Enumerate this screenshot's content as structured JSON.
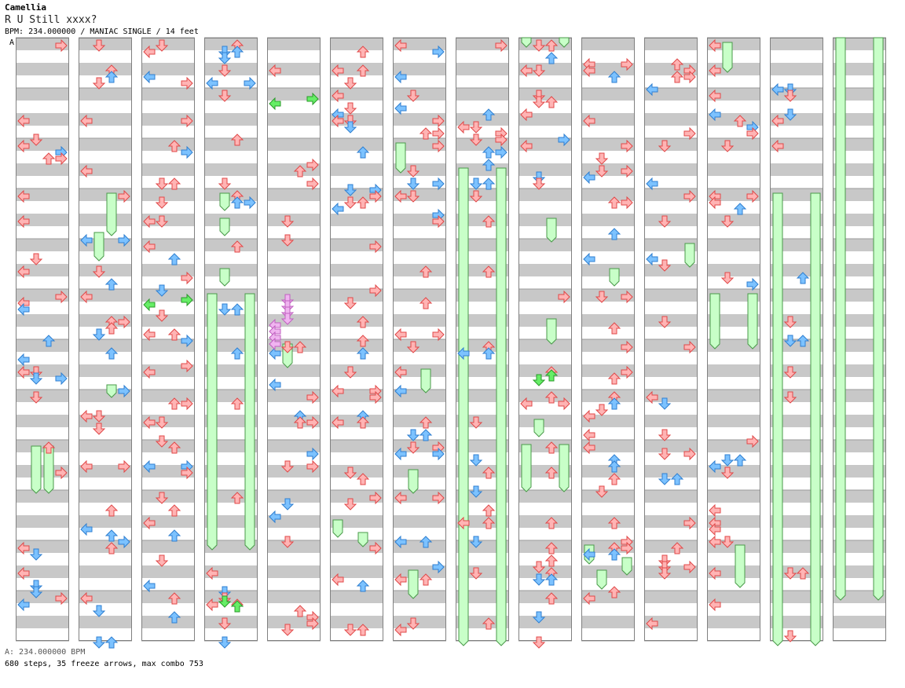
{
  "header": {
    "artist": "Camellia",
    "title": "R U Still xxxx?",
    "info": "BPM: 234.000000 / MANIAC SINGLE / 14 feet"
  },
  "section_label": "A",
  "footer": {
    "bpm_line": "A: 234.000000 BPM",
    "stats_line": "680 steps, 35 freeze arrows, max combo 753"
  },
  "colors": {
    "stripe": "#c8c8c8",
    "border": "#808080",
    "quarter": "#ffb4b4",
    "quarter_edge": "#e04848",
    "eighth": "#7cc2ff",
    "eighth_edge": "#2f7fd0",
    "green": "#66ee66",
    "green_edge": "#2a9a2a",
    "purple": "#f0b4f0",
    "purple_edge": "#c060c0",
    "freeze": "#c8ffc8",
    "freeze_edge": "#4a9a4a"
  },
  "chart_data": {
    "type": "step-chart",
    "columns": 14,
    "lanes": [
      "left",
      "down",
      "up",
      "right"
    ],
    "steps": 680,
    "freeze_arrows": 35,
    "max_combo": 753,
    "bpm": 234
  }
}
